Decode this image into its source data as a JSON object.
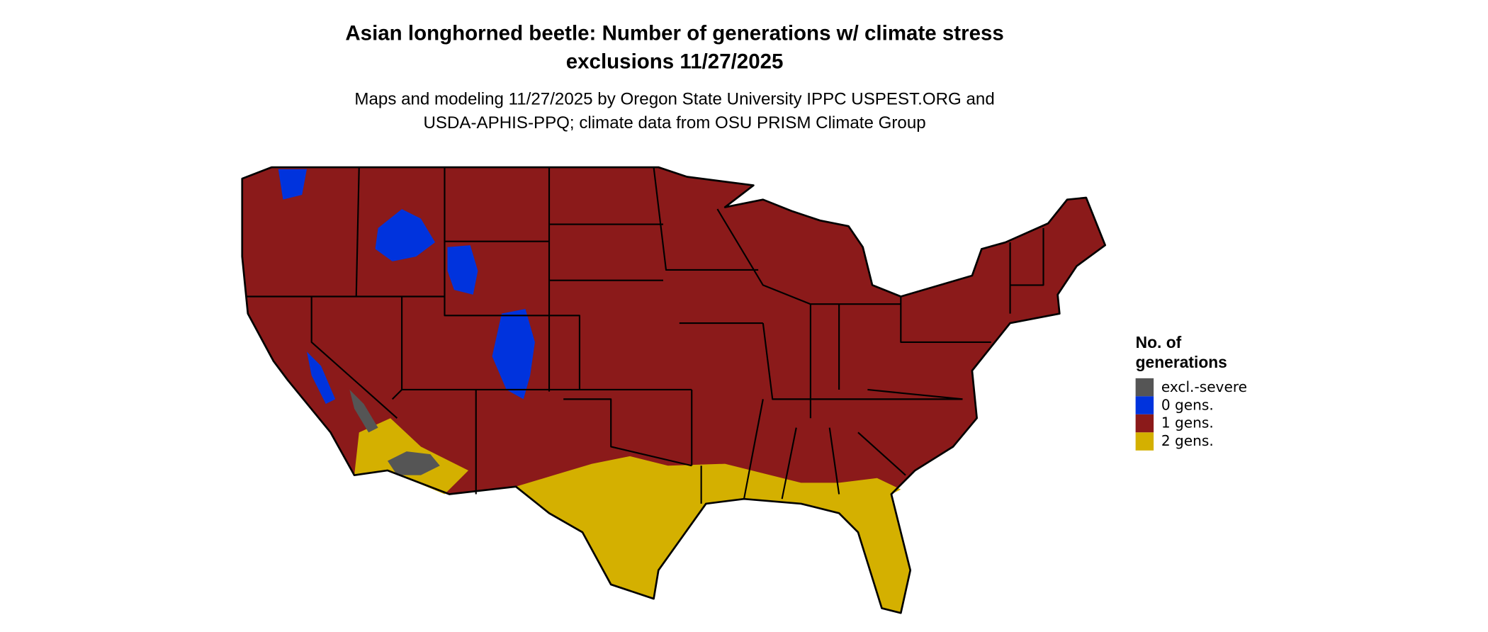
{
  "header": {
    "title": [
      "Asian longhorned beetle: Number of generations w/ climate stress",
      "exclusions 11/27/2025"
    ],
    "subtitle": [
      "Maps and modeling 11/27/2025 by Oregon State University IPPC USPEST.ORG and",
      "USDA-APHIS-PPQ; climate data from OSU PRISM Climate Group"
    ]
  },
  "legend": {
    "title": [
      "No. of",
      "generations"
    ],
    "items": [
      {
        "label": "excl.-severe",
        "color": "#555555"
      },
      {
        "label": "0 gens.",
        "color": "#0033dd"
      },
      {
        "label": "1 gens.",
        "color": "#8b1a1a"
      },
      {
        "label": "2 gens.",
        "color": "#d4b000"
      }
    ]
  }
}
